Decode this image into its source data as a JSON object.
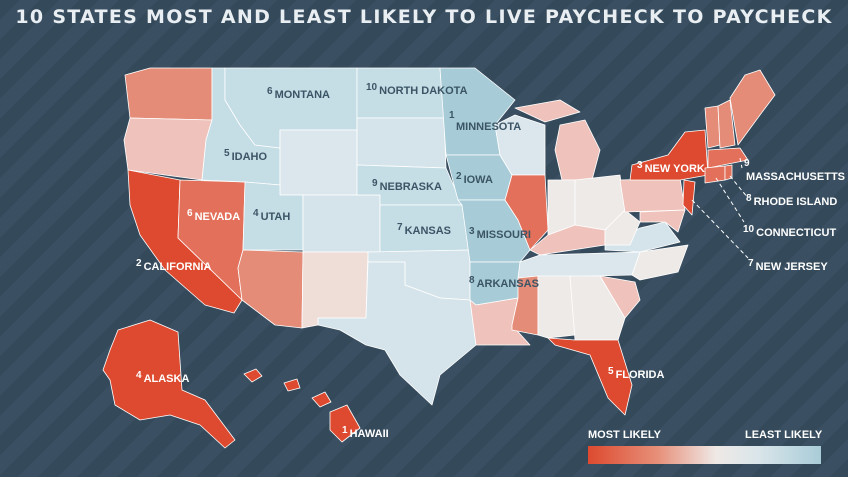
{
  "title": "10 STATES MOST AND LEAST LIKELY TO LIVE PAYCHECK TO PAYCHECK",
  "colors": {
    "most": "#dd4a2f",
    "most_mid": "#e58c78",
    "light_red": "#efc3bb",
    "neutral": "#eeeae8",
    "light_blue": "#d5e4ea",
    "least": "#a7cbd7",
    "background": "#34495a"
  },
  "most_likely": [
    {
      "rank": "1",
      "state": "HAWAII"
    },
    {
      "rank": "2",
      "state": "CALIFORNIA"
    },
    {
      "rank": "3",
      "state": "NEW YORK"
    },
    {
      "rank": "4",
      "state": "ALASKA"
    },
    {
      "rank": "5",
      "state": "FLORIDA"
    },
    {
      "rank": "6",
      "state": "NEVADA"
    },
    {
      "rank": "7",
      "state": "NEW JERSEY"
    },
    {
      "rank": "8",
      "state": "RHODE ISLAND"
    },
    {
      "rank": "9",
      "state": "MASSACHUSETTS"
    },
    {
      "rank": "10",
      "state": "CONNECTICUT"
    }
  ],
  "least_likely": [
    {
      "rank": "1",
      "state": "MINNESOTA"
    },
    {
      "rank": "2",
      "state": "IOWA"
    },
    {
      "rank": "3",
      "state": "MISSOURI"
    },
    {
      "rank": "4",
      "state": "UTAH"
    },
    {
      "rank": "5",
      "state": "IDAHO"
    },
    {
      "rank": "6",
      "state": "MONTANA"
    },
    {
      "rank": "7",
      "state": "KANSAS"
    },
    {
      "rank": "8",
      "state": "ARKANSAS"
    },
    {
      "rank": "9",
      "state": "NEBRASKA"
    },
    {
      "rank": "10",
      "state": "NORTH DAKOTA"
    }
  ],
  "legend": {
    "most_label": "MOST LIKELY",
    "least_label": "LEAST LIKELY"
  }
}
